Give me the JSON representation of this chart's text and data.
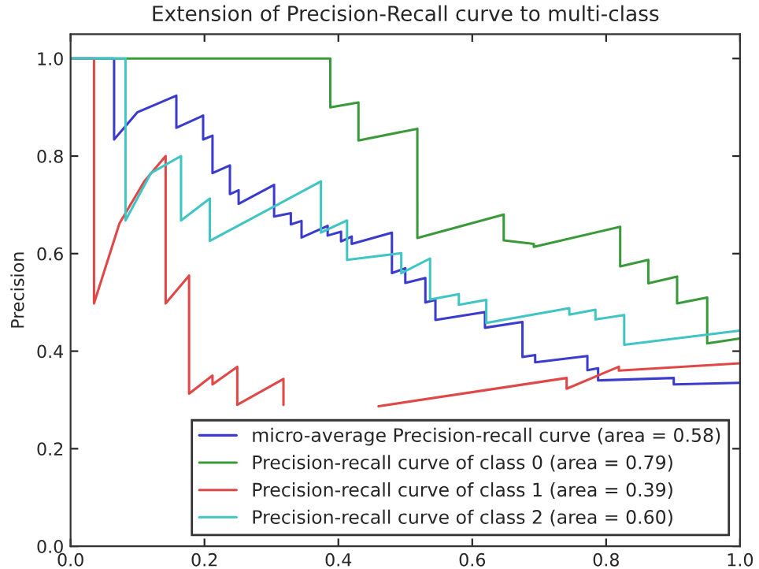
{
  "chart_data": {
    "type": "line",
    "title": "Extension of Precision-Recall curve to multi-class",
    "ylabel": "Precision",
    "xlim": [
      0,
      1
    ],
    "ylim": [
      0,
      1.05
    ],
    "xticks": [
      {
        "value": 0,
        "label": "0.0"
      },
      {
        "value": 0.2,
        "label": "0.2"
      },
      {
        "value": 0.4,
        "label": "0.4"
      },
      {
        "value": 0.6,
        "label": "0.6"
      },
      {
        "value": 0.8,
        "label": "0.8"
      },
      {
        "value": 1,
        "label": "1.0"
      }
    ],
    "yticks": [
      {
        "value": 0,
        "label": "0.0"
      },
      {
        "value": 0.2,
        "label": "0.2"
      },
      {
        "value": 0.4,
        "label": "0.4"
      },
      {
        "value": 0.6,
        "label": "0.6"
      },
      {
        "value": 0.8,
        "label": "0.8"
      },
      {
        "value": 1,
        "label": "1.0"
      }
    ],
    "grid": false,
    "legend": "bottom right",
    "marker": "none",
    "line_style": "solid",
    "series": [
      {
        "name": "micro-average Precision-recall curve (area = 0.58)",
        "color": "#3c3ccc",
        "x": [
          0,
          0.065,
          0.065,
          0.1,
          0.158,
          0.158,
          0.198,
          0.198,
          0.212,
          0.212,
          0.238,
          0.238,
          0.251,
          0.251,
          0.304,
          0.304,
          0.329,
          0.329,
          0.345,
          0.345,
          0.384,
          0.384,
          0.404,
          0.404,
          0.42,
          0.42,
          0.48,
          0.48,
          0.5,
          0.5,
          0.53,
          0.53,
          0.545,
          0.545,
          0.619,
          0.619,
          0.675,
          0.675,
          0.694,
          0.694,
          0.772,
          0.772,
          0.788,
          0.788,
          0.901,
          0.901,
          1.0
        ],
        "values": [
          1.0,
          1.0,
          0.834,
          0.89,
          0.924,
          0.858,
          0.883,
          0.834,
          0.842,
          0.765,
          0.781,
          0.722,
          0.73,
          0.702,
          0.741,
          0.676,
          0.683,
          0.66,
          0.667,
          0.633,
          0.657,
          0.637,
          0.645,
          0.625,
          0.635,
          0.62,
          0.643,
          0.56,
          0.57,
          0.54,
          0.55,
          0.5,
          0.505,
          0.464,
          0.48,
          0.448,
          0.46,
          0.388,
          0.392,
          0.377,
          0.39,
          0.361,
          0.365,
          0.34,
          0.345,
          0.332,
          0.335
        ]
      },
      {
        "name": "Precision-recall curve of class 0 (area = 0.79)",
        "color": "#3a9a3a",
        "x": [
          0,
          0.388,
          0.388,
          0.43,
          0.43,
          0.518,
          0.518,
          0.647,
          0.647,
          0.692,
          0.692,
          0.821,
          0.821,
          0.863,
          0.863,
          0.906,
          0.906,
          0.951,
          0.951,
          1.0
        ],
        "values": [
          1.0,
          1.0,
          0.9,
          0.91,
          0.832,
          0.856,
          0.632,
          0.68,
          0.627,
          0.62,
          0.614,
          0.655,
          0.574,
          0.587,
          0.539,
          0.553,
          0.498,
          0.51,
          0.416,
          0.426
        ]
      },
      {
        "name": "Precision-recall curve of class 1 (area = 0.39)",
        "color": "#e04848",
        "x": [
          0,
          0.035,
          0.035,
          0.073,
          0.11,
          0.142,
          0.142,
          0.177,
          0.177,
          0.212,
          0.212,
          0.249,
          0.249,
          0.318,
          0.318,
          null,
          0.46,
          0.741,
          0.741,
          0.819,
          0.819,
          1.0
        ],
        "values": [
          1.0,
          1.0,
          0.498,
          0.662,
          0.748,
          0.8,
          0.498,
          0.555,
          0.313,
          0.35,
          0.332,
          0.368,
          0.29,
          0.343,
          0.29,
          null,
          0.287,
          0.345,
          0.323,
          0.368,
          0.36,
          0.375
        ]
      },
      {
        "name": "Precision-recall curve of class 2 (area = 0.60)",
        "color": "#40c4c4",
        "x": [
          0,
          0.082,
          0.082,
          0.12,
          0.165,
          0.165,
          0.208,
          0.208,
          0.374,
          0.374,
          0.413,
          0.413,
          0.494,
          0.494,
          0.537,
          0.537,
          0.58,
          0.58,
          0.621,
          0.621,
          0.745,
          0.745,
          0.784,
          0.784,
          0.827,
          0.827,
          1.0
        ],
        "values": [
          1.0,
          1.0,
          0.668,
          0.765,
          0.8,
          0.668,
          0.713,
          0.626,
          0.748,
          0.643,
          0.668,
          0.587,
          0.601,
          0.56,
          0.59,
          0.506,
          0.517,
          0.495,
          0.505,
          0.458,
          0.488,
          0.475,
          0.485,
          0.465,
          0.474,
          0.413,
          0.442
        ]
      }
    ]
  }
}
